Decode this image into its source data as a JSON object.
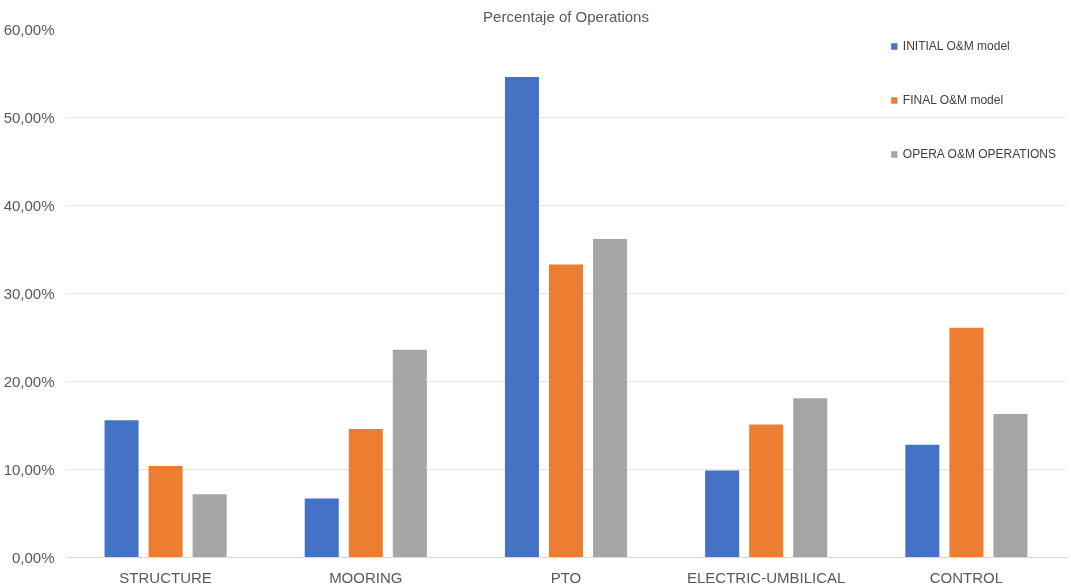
{
  "chart_data": {
    "type": "bar",
    "title": "Percentaje of Operations",
    "categories": [
      "STRUCTURE",
      "MOORING",
      "PTO",
      "ELECTRIC-UMBILICAL",
      "CONTROL"
    ],
    "series": [
      {
        "name": "INITIAL O&M model",
        "color": "#4472c4",
        "values": [
          15.6,
          6.7,
          54.6,
          9.9,
          12.8
        ]
      },
      {
        "name": "FINAL O&M model",
        "color": "#ed7d31",
        "values": [
          10.4,
          14.6,
          33.3,
          15.1,
          26.1
        ]
      },
      {
        "name": "OPERA O&M OPERATIONS",
        "color": "#a5a5a5",
        "values": [
          7.2,
          23.6,
          36.2,
          18.1,
          16.3
        ]
      }
    ],
    "ylim": [
      0,
      60
    ],
    "yticks": [
      {
        "value": 0,
        "label": "0,00%"
      },
      {
        "value": 10,
        "label": "10,00%"
      },
      {
        "value": 20,
        "label": "20,00%"
      },
      {
        "value": 30,
        "label": "30,00%"
      },
      {
        "value": 40,
        "label": "40,00%"
      },
      {
        "value": 50,
        "label": "50,00%"
      },
      {
        "value": 60,
        "label": "60,00%"
      }
    ],
    "grid": "y",
    "legend": "top right"
  }
}
